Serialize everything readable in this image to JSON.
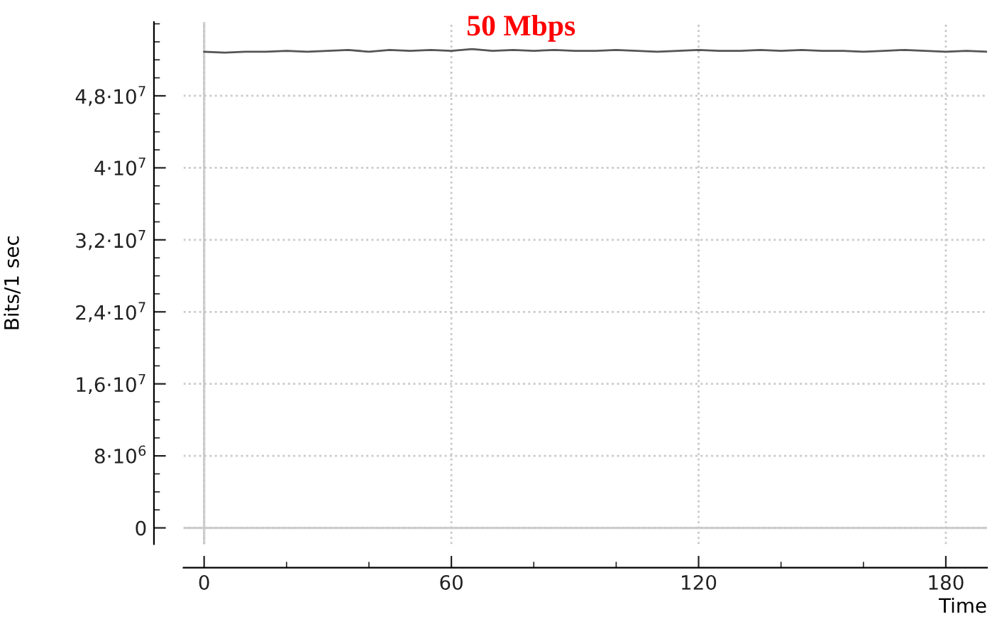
{
  "chart_data": {
    "type": "line",
    "title": "50 Mbps",
    "xlabel": "Time",
    "ylabel": "Bits/1 sec",
    "x": [
      0,
      5,
      10,
      15,
      20,
      25,
      30,
      35,
      40,
      45,
      50,
      55,
      60,
      65,
      70,
      75,
      80,
      85,
      90,
      95,
      100,
      105,
      110,
      115,
      120,
      125,
      130,
      135,
      140,
      145,
      150,
      155,
      160,
      165,
      170,
      175,
      180,
      185,
      190
    ],
    "series": [
      {
        "color": "#555555",
        "values": [
          52900000,
          52800000,
          52900000,
          52900000,
          53000000,
          52900000,
          53000000,
          53100000,
          52900000,
          53100000,
          53000000,
          53100000,
          53000000,
          53200000,
          53000000,
          53100000,
          53000000,
          53100000,
          53000000,
          53000000,
          53100000,
          53000000,
          52900000,
          53000000,
          53100000,
          53000000,
          53000000,
          53100000,
          53000000,
          53100000,
          53000000,
          53000000,
          52900000,
          53000000,
          53100000,
          53000000,
          52900000,
          53000000,
          52900000
        ]
      }
    ],
    "xlim": [
      -5,
      190
    ],
    "ylim": [
      -1800000,
      56200000
    ],
    "xticks": [
      0,
      60,
      120,
      180
    ],
    "yticks": [
      0,
      {
        "value": 8000000,
        "label": "8·10$^{6}$"
      },
      {
        "value": 16000000,
        "label": "1,6·10$^{7}$"
      },
      {
        "value": 24000000,
        "label": "2,4·10$^{7}$"
      },
      {
        "value": 32000000,
        "label": "3,2·10$^{7}$"
      },
      {
        "value": 40000000,
        "label": "4·10$^{7}$"
      },
      {
        "value": 48000000,
        "label": "4,8·10$^{7}$"
      }
    ],
    "grid": true,
    "marker": "none",
    "line_style": "solid"
  }
}
